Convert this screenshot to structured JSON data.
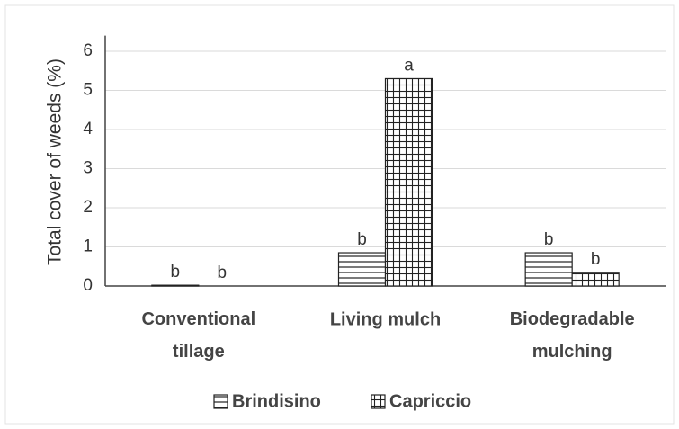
{
  "chart_data": {
    "type": "bar",
    "y_label": "Total cover of weeds (%)",
    "categories": [
      "Conventional tillage",
      "Living mulch",
      "Biodegradable mulching"
    ],
    "series": [
      {
        "name": "Brindisino",
        "color": "#222222",
        "pattern": "horizontal",
        "values": [
          0.02,
          0.85,
          0.85
        ],
        "letters": [
          "b",
          "b",
          "b"
        ]
      },
      {
        "name": "Capriccio",
        "color": "#222222",
        "pattern": "grid",
        "values": [
          0,
          5.3,
          0.35
        ],
        "letters": [
          "b",
          "a",
          "b"
        ]
      }
    ],
    "ylim": [
      0,
      6.4
    ],
    "yticks": [
      0,
      1,
      2,
      3,
      4,
      5,
      6
    ],
    "grid": true,
    "legend": "bottom"
  }
}
